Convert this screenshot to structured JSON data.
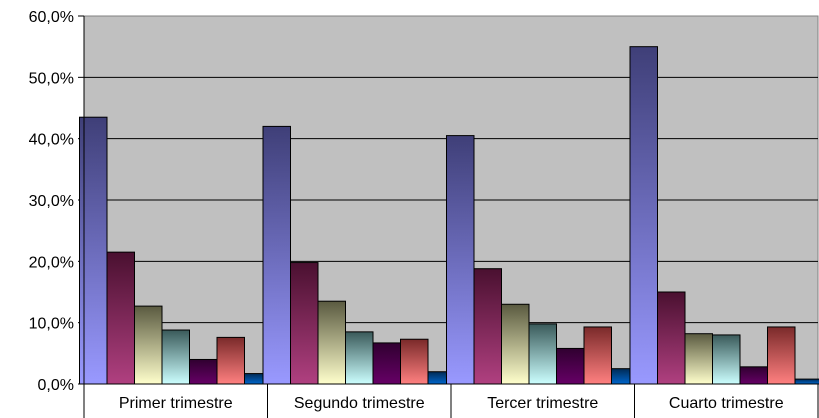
{
  "chart_data": {
    "type": "bar",
    "title": "",
    "xlabel": "",
    "ylabel": "",
    "categories": [
      "Primer trimestre",
      "Segundo trimestre",
      "Tercer trimestre",
      "Cuarto trimestre"
    ],
    "y_ticks": [
      "0,0%",
      "10,0%",
      "20,0%",
      "30,0%",
      "40,0%",
      "50,0%",
      "60,0%"
    ],
    "ylim": [
      0,
      60
    ],
    "grid": true,
    "legend": "none",
    "plot_background": "#c0c0c0",
    "series": [
      {
        "values": [
          43.5,
          42.0,
          40.5,
          55.0
        ],
        "color_top": "#3f3f78",
        "color_bottom": "#9999ff"
      },
      {
        "values": [
          21.5,
          19.8,
          18.8,
          15.0
        ],
        "color_top": "#4a1030",
        "color_bottom": "#b04080"
      },
      {
        "values": [
          12.7,
          13.5,
          13.0,
          8.2
        ],
        "color_top": "#5a5a40",
        "color_bottom": "#ffffcc"
      },
      {
        "values": [
          8.8,
          8.5,
          9.8,
          8.0
        ],
        "color_top": "#3a5a5a",
        "color_bottom": "#ccffff"
      },
      {
        "values": [
          4.0,
          6.7,
          5.8,
          2.8
        ],
        "color_top": "#300030",
        "color_bottom": "#660066"
      },
      {
        "values": [
          7.6,
          7.3,
          9.3,
          9.3
        ],
        "color_top": "#7a2a2a",
        "color_bottom": "#ff8080"
      },
      {
        "values": [
          1.7,
          2.0,
          2.5,
          0.8
        ],
        "color_top": "#002a55",
        "color_bottom": "#0066cc"
      }
    ]
  }
}
